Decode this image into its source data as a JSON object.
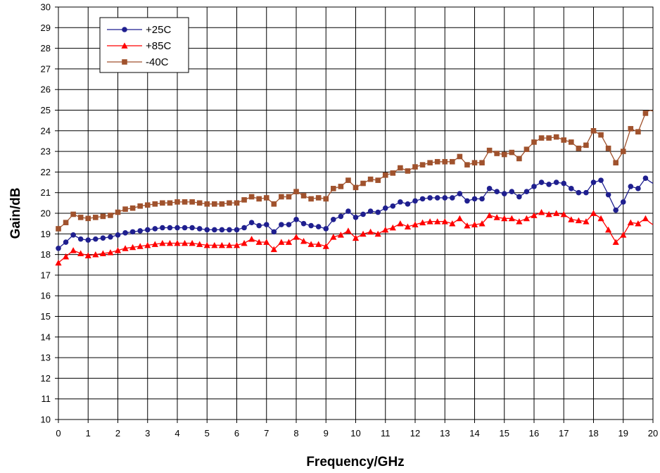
{
  "chart_data": {
    "type": "line",
    "xlabel": "Frequency/GHz",
    "ylabel": "Gain/dB",
    "xlim": [
      0,
      20
    ],
    "ylim": [
      10,
      30
    ],
    "xticks": [
      0,
      1,
      2,
      3,
      4,
      5,
      6,
      7,
      8,
      9,
      10,
      11,
      12,
      13,
      14,
      15,
      16,
      17,
      18,
      19,
      20
    ],
    "yticks": [
      10,
      11,
      12,
      13,
      14,
      15,
      16,
      17,
      18,
      19,
      20,
      21,
      22,
      23,
      24,
      25,
      26,
      27,
      28,
      29,
      30
    ],
    "grid": true,
    "legend_position": "top-left",
    "x": [
      0,
      0.25,
      0.5,
      0.75,
      1,
      1.25,
      1.5,
      1.75,
      2,
      2.25,
      2.5,
      2.75,
      3,
      3.25,
      3.5,
      3.75,
      4,
      4.25,
      4.5,
      4.75,
      5,
      5.25,
      5.5,
      5.75,
      6,
      6.25,
      6.5,
      6.75,
      7,
      7.25,
      7.5,
      7.75,
      8,
      8.25,
      8.5,
      8.75,
      9,
      9.25,
      9.5,
      9.75,
      10,
      10.25,
      10.5,
      10.75,
      11,
      11.25,
      11.5,
      11.75,
      12,
      12.25,
      12.5,
      12.75,
      13,
      13.25,
      13.5,
      13.75,
      14,
      14.25,
      14.5,
      14.75,
      15,
      15.25,
      15.5,
      15.75,
      16,
      16.25,
      16.5,
      16.75,
      17,
      17.25,
      17.5,
      17.75,
      18,
      18.25,
      18.5,
      18.75,
      19,
      19.25,
      19.5,
      19.75
    ],
    "series": [
      {
        "name": "+25C",
        "color": "#1f1f8f",
        "marker": "circle",
        "values": [
          18.3,
          18.6,
          18.95,
          18.75,
          18.7,
          18.75,
          18.8,
          18.85,
          18.95,
          19.05,
          19.1,
          19.15,
          19.2,
          19.25,
          19.3,
          19.3,
          19.3,
          19.3,
          19.3,
          19.25,
          19.2,
          19.2,
          19.2,
          19.2,
          19.2,
          19.3,
          19.55,
          19.4,
          19.45,
          19.1,
          19.45,
          19.45,
          19.7,
          19.5,
          19.4,
          19.35,
          19.25,
          19.7,
          19.85,
          20.1,
          19.8,
          19.95,
          20.1,
          20.05,
          20.25,
          20.35,
          20.55,
          20.45,
          20.6,
          20.7,
          20.75,
          20.75,
          20.75,
          20.75,
          20.95,
          20.6,
          20.7,
          20.7,
          21.2,
          21.05,
          20.95,
          21.05,
          20.8,
          21.05,
          21.3,
          21.5,
          21.4,
          21.5,
          21.45,
          21.2,
          21.0,
          21.0,
          21.5,
          21.6,
          20.9,
          20.15,
          20.55,
          21.3,
          21.2,
          21.7
        ],
        "end_value": 21.45
      },
      {
        "name": "+85C",
        "color": "#ff0000",
        "marker": "triangle",
        "values": [
          17.6,
          17.9,
          18.2,
          18.05,
          17.95,
          18.0,
          18.05,
          18.1,
          18.2,
          18.3,
          18.35,
          18.4,
          18.45,
          18.5,
          18.55,
          18.55,
          18.55,
          18.55,
          18.55,
          18.5,
          18.45,
          18.45,
          18.45,
          18.45,
          18.45,
          18.55,
          18.75,
          18.6,
          18.6,
          18.25,
          18.6,
          18.6,
          18.85,
          18.65,
          18.5,
          18.5,
          18.4,
          18.85,
          18.95,
          19.15,
          18.8,
          19.0,
          19.1,
          19.0,
          19.2,
          19.3,
          19.5,
          19.35,
          19.45,
          19.55,
          19.6,
          19.6,
          19.6,
          19.5,
          19.75,
          19.4,
          19.45,
          19.5,
          19.9,
          19.8,
          19.75,
          19.75,
          19.6,
          19.75,
          19.9,
          20.05,
          19.95,
          20.0,
          19.95,
          19.7,
          19.65,
          19.6,
          20.0,
          19.75,
          19.2,
          18.6,
          18.95,
          19.55,
          19.5,
          19.75
        ],
        "end_value": 19.45
      },
      {
        "name": "-40C",
        "color": "#a0522d",
        "marker": "square",
        "values": [
          19.25,
          19.55,
          19.95,
          19.8,
          19.75,
          19.8,
          19.85,
          19.9,
          20.05,
          20.2,
          20.25,
          20.35,
          20.4,
          20.45,
          20.5,
          20.5,
          20.55,
          20.55,
          20.55,
          20.5,
          20.45,
          20.45,
          20.45,
          20.5,
          20.5,
          20.65,
          20.8,
          20.7,
          20.75,
          20.45,
          20.8,
          20.8,
          21.05,
          20.85,
          20.7,
          20.75,
          20.7,
          21.2,
          21.3,
          21.6,
          21.25,
          21.45,
          21.65,
          21.6,
          21.85,
          21.95,
          22.2,
          22.05,
          22.25,
          22.35,
          22.45,
          22.5,
          22.5,
          22.5,
          22.75,
          22.35,
          22.45,
          22.45,
          23.05,
          22.9,
          22.85,
          22.95,
          22.65,
          23.1,
          23.45,
          23.65,
          23.65,
          23.7,
          23.55,
          23.45,
          23.15,
          23.3,
          24.0,
          23.8,
          23.15,
          22.45,
          23.0,
          24.1,
          23.95,
          24.85
        ],
        "end_value": 24.95
      }
    ]
  }
}
